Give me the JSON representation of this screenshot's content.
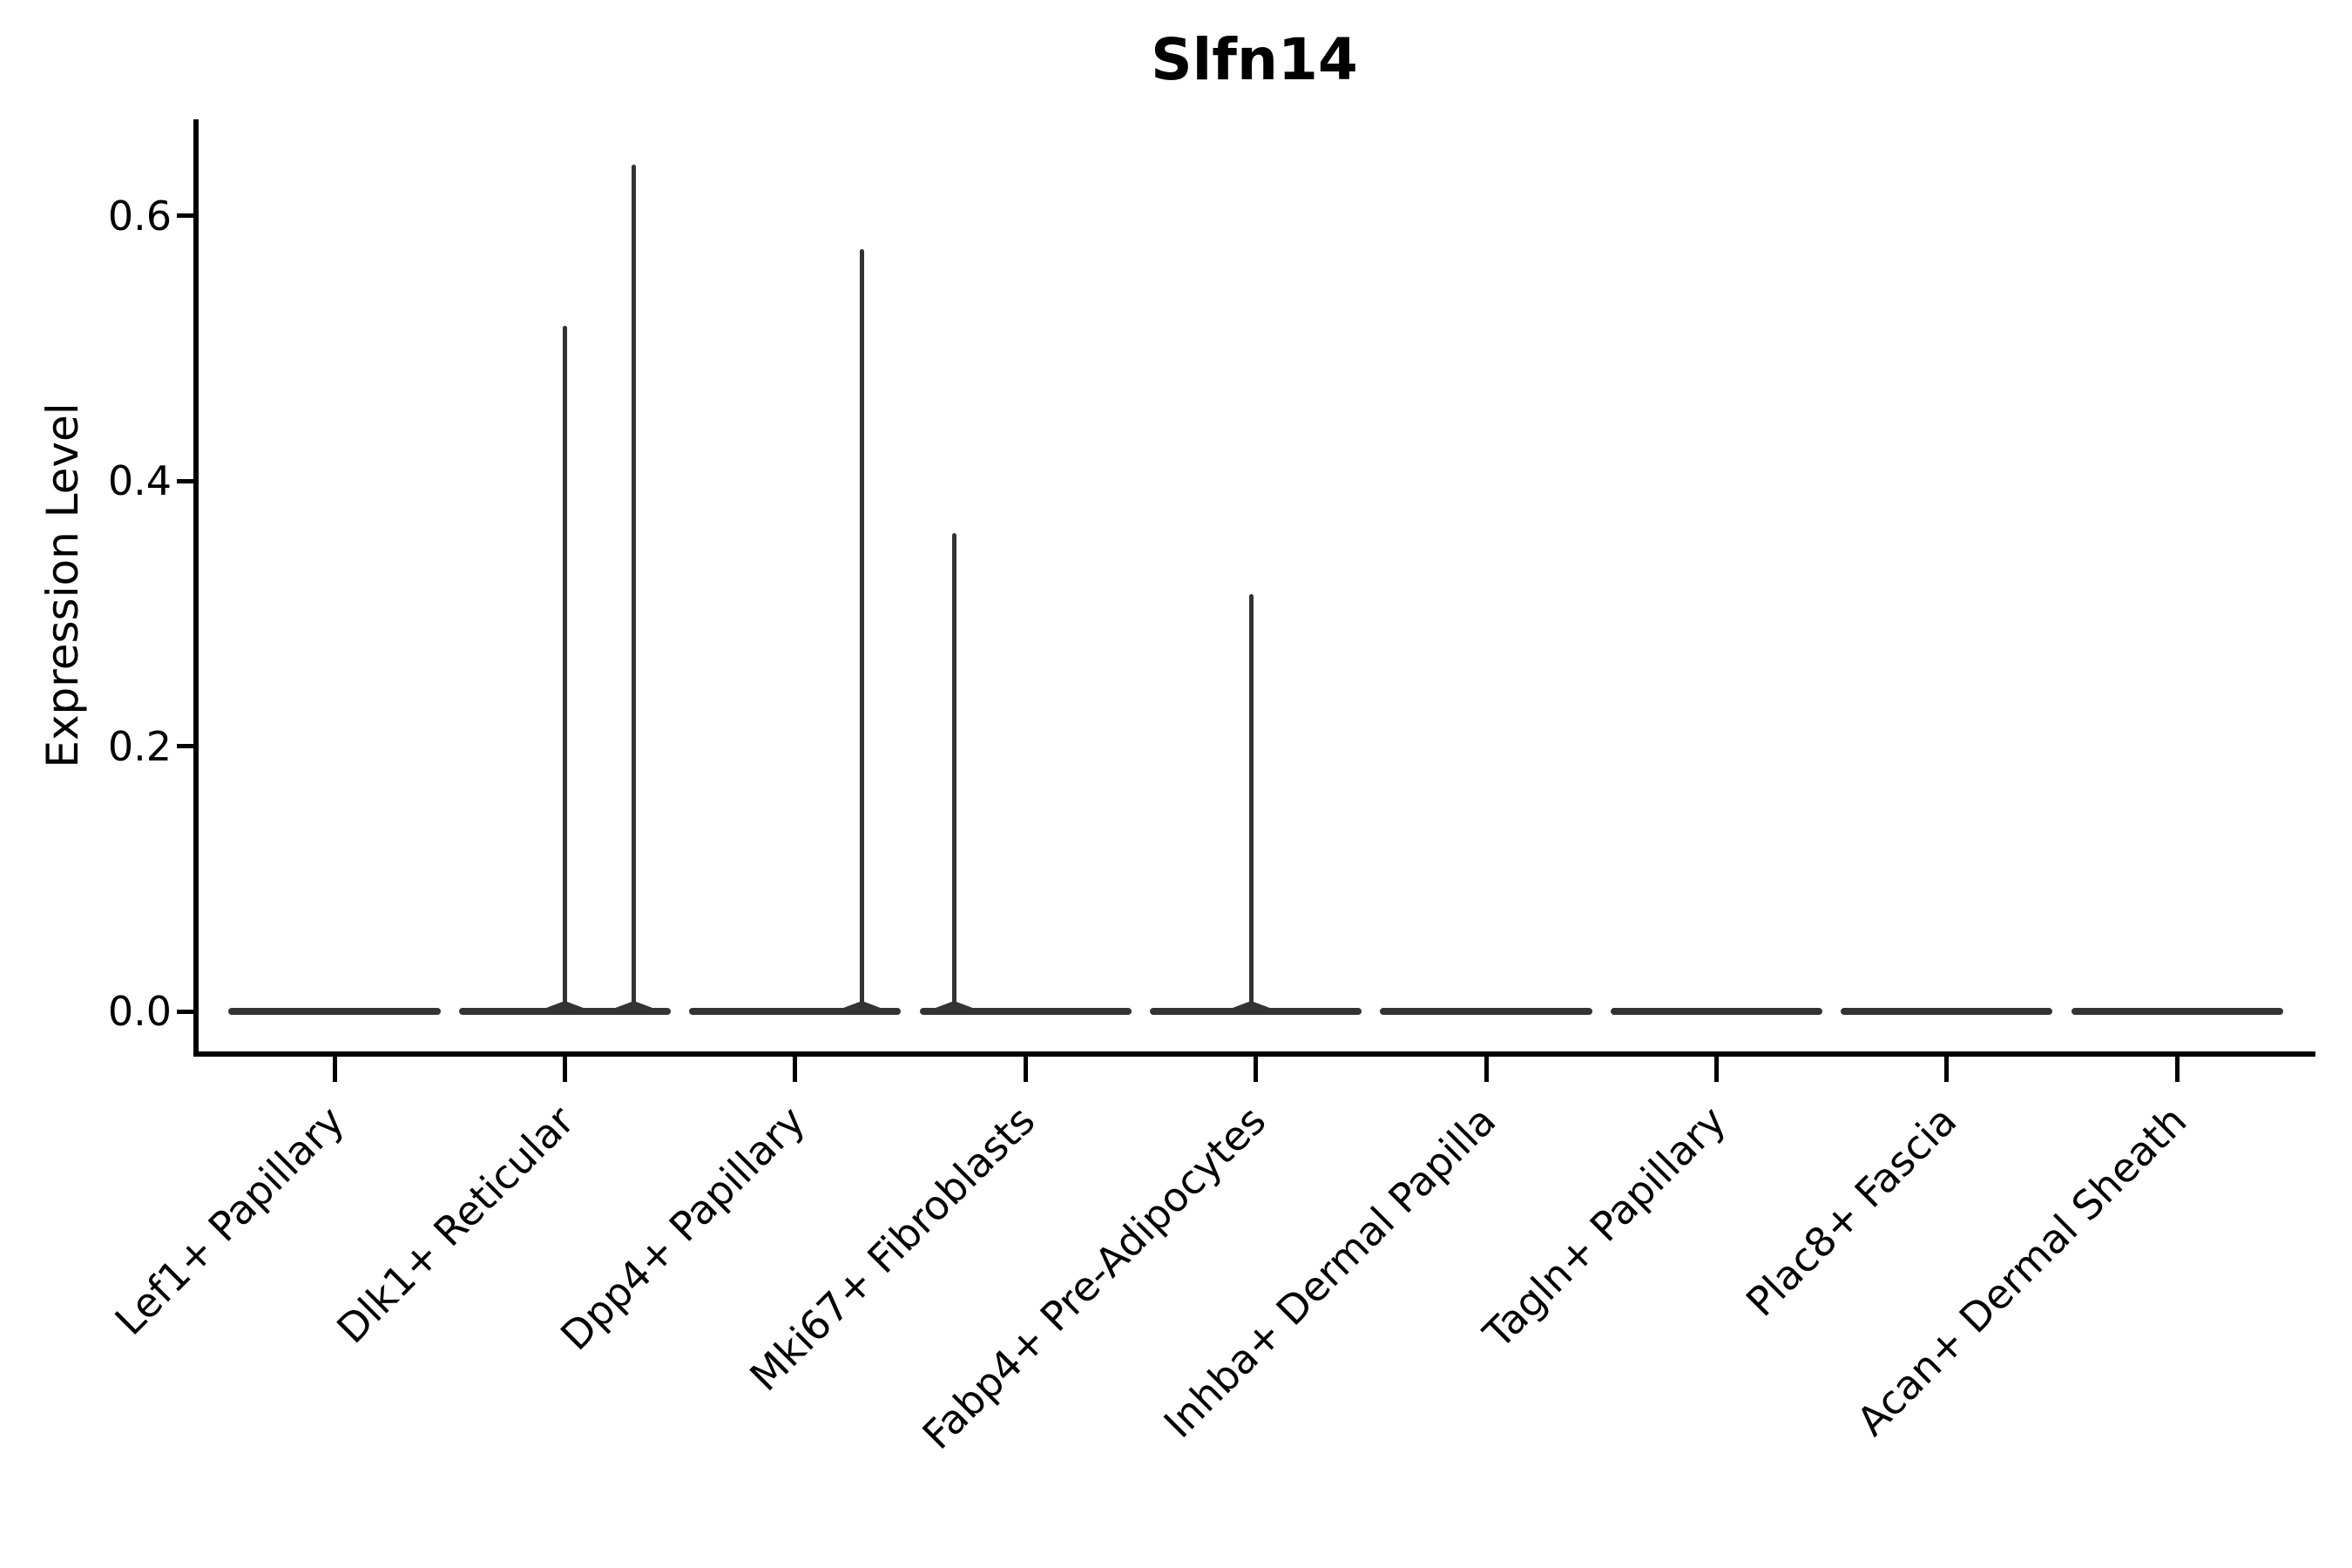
{
  "figure": {
    "title": "Slfn14",
    "ylabel": "Expression Level"
  },
  "chart_data": {
    "type": "violin",
    "title": "Slfn14",
    "xlabel": "",
    "ylabel": "Expression Level",
    "ylim": [
      -0.032,
      0.673
    ],
    "yticks": [
      0.0,
      0.2,
      0.4,
      0.6
    ],
    "ytick_labels": [
      "0.0",
      "0.2",
      "0.4",
      "0.6"
    ],
    "grid": false,
    "legend": "none",
    "violin_color": "#333333",
    "axis_color": "#000000",
    "violin_half_width": 0.46,
    "categories": [
      "Lef1+ Papillary",
      "Dlk1+ Reticular",
      "Dpp4+ Papillary",
      "Mki67+ Fibroblasts",
      "Fabp4+ Pre-Adipocytes",
      "Inhba+ Dermal Papilla",
      "Tagln+ Papillary",
      "Plac8+ Fascia",
      "Acan+ Dermal Sheath"
    ],
    "series": [
      {
        "name": "Lef1+ Papillary",
        "baseline": 0.0,
        "max": 0.0,
        "stems": []
      },
      {
        "name": "Dlk1+ Reticular",
        "baseline": 0.0,
        "max": 0.639,
        "stems": [
          {
            "offset": 0.0,
            "value": 0.517
          },
          {
            "offset": 0.3,
            "value": 0.639
          }
        ]
      },
      {
        "name": "Dpp4+ Papillary",
        "baseline": 0.0,
        "max": 0.575,
        "stems": [
          {
            "offset": 0.29,
            "value": 0.575
          }
        ]
      },
      {
        "name": "Mki67+ Fibroblasts",
        "baseline": 0.0,
        "max": 0.361,
        "stems": [
          {
            "offset": -0.31,
            "value": 0.361
          }
        ]
      },
      {
        "name": "Fabp4+ Pre-Adipocytes",
        "baseline": 0.0,
        "max": 0.315,
        "stems": [
          {
            "offset": -0.02,
            "value": 0.315
          }
        ]
      },
      {
        "name": "Inhba+ Dermal Papilla",
        "baseline": 0.0,
        "max": 0.0,
        "stems": []
      },
      {
        "name": "Tagln+ Papillary",
        "baseline": 0.0,
        "max": 0.0,
        "stems": []
      },
      {
        "name": "Plac8+ Fascia",
        "baseline": 0.0,
        "max": 0.0,
        "stems": []
      },
      {
        "name": "Acan+ Dermal Sheath",
        "baseline": 0.0,
        "max": 0.0,
        "stems": []
      }
    ]
  }
}
